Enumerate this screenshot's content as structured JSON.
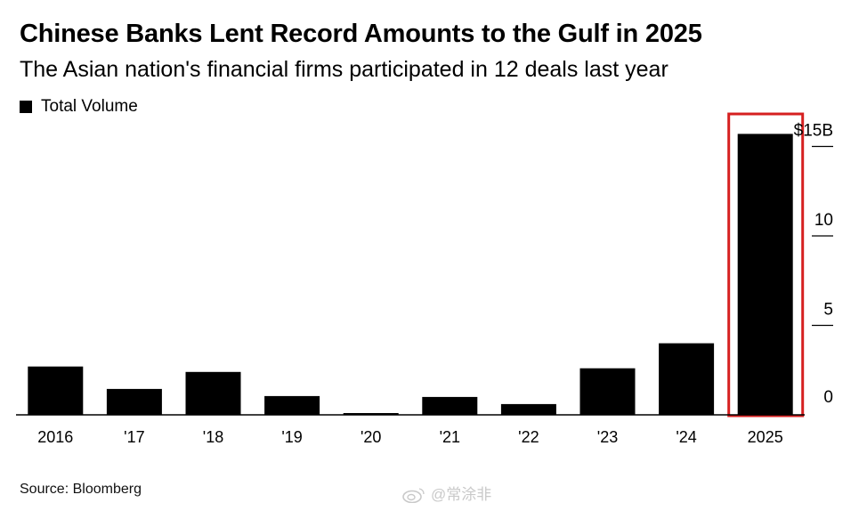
{
  "title": "Chinese Banks Lent Record Amounts to the Gulf in 2025",
  "subtitle": "The Asian nation's financial firms participated in 12 deals last year",
  "legend": {
    "label": "Total Volume",
    "color": "#000000"
  },
  "source": "Source: Bloomberg",
  "watermark": "@常涂非",
  "highlight": {
    "category": "2025",
    "color": "#d62020"
  },
  "chart_data": {
    "type": "bar",
    "categories": [
      "2016",
      "'17",
      "'18",
      "'19",
      "'20",
      "'21",
      "'22",
      "'23",
      "'24",
      "2025"
    ],
    "series": [
      {
        "name": "Total Volume",
        "values": [
          2.7,
          1.45,
          2.4,
          1.05,
          0.1,
          1.0,
          0.6,
          2.6,
          4.0,
          15.7
        ]
      }
    ],
    "ylim": [
      0,
      15
    ],
    "yticks": [
      0,
      5,
      10,
      15
    ],
    "ytick_labels": [
      "0",
      "5",
      "10",
      "$15B"
    ],
    "y_axis_position": "right",
    "grid": false,
    "legend_position": "top-left",
    "bar_color": "#000000"
  }
}
